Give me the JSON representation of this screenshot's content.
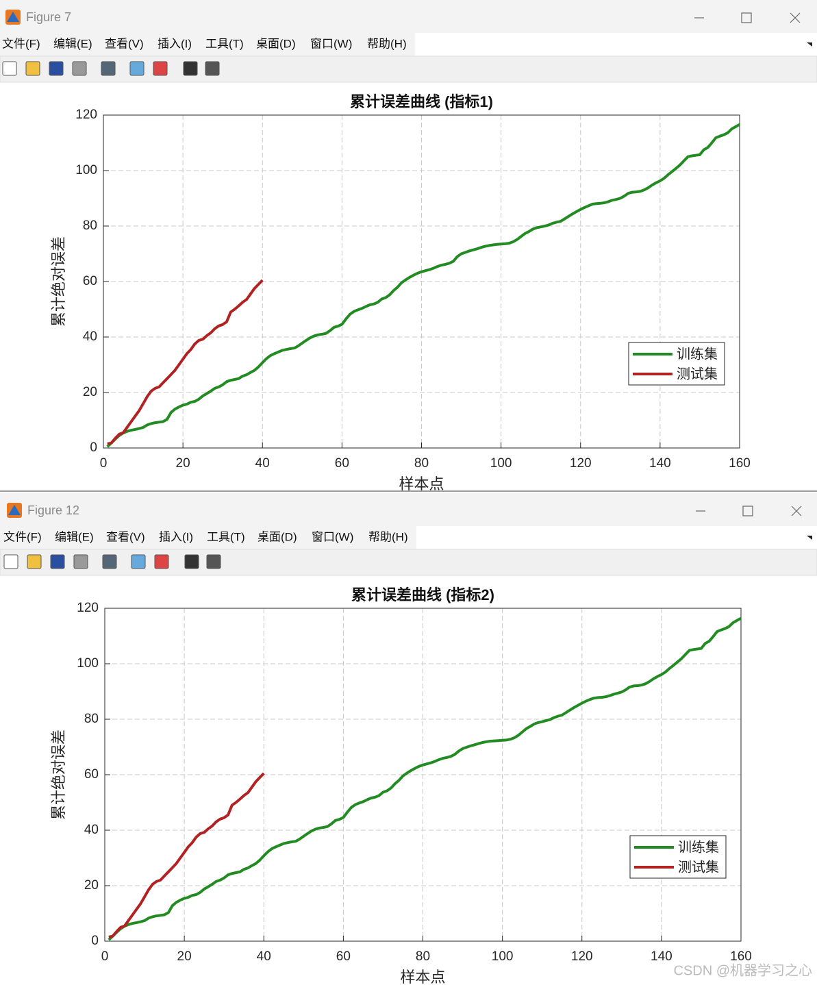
{
  "windows": [
    {
      "title": "Figure 7",
      "menu": [
        "文件(F)",
        "编辑(E)",
        "查看(V)",
        "插入(I)",
        "工具(T)",
        "桌面(D)",
        "窗口(W)",
        "帮助(H)"
      ]
    },
    {
      "title": "Figure 12",
      "menu": [
        "文件(F)",
        "编辑(E)",
        "查看(V)",
        "插入(I)",
        "工具(T)",
        "桌面(D)",
        "窗口(W)",
        "帮助(H)"
      ]
    }
  ],
  "chart_data": [
    {
      "type": "line",
      "title": "累计误差曲线 (指标1)",
      "x_label": "样本点",
      "y_label": "累计绝对误差",
      "xlim": [
        0,
        160
      ],
      "xticks": [
        0,
        20,
        40,
        60,
        80,
        100,
        120,
        140,
        160
      ],
      "ylim": [
        0,
        120
      ],
      "yticks": [
        0,
        20,
        40,
        60,
        80,
        100,
        120
      ],
      "grid": true,
      "legend": "southeast",
      "series": [
        {
          "name": "训练集",
          "color": "#228b22",
          "x": [
            1,
            2,
            3,
            4,
            5,
            6,
            7,
            8,
            9,
            10,
            11,
            12,
            13,
            14,
            15,
            16,
            17,
            18,
            19,
            20,
            21,
            22,
            23,
            24,
            25,
            26,
            27,
            28,
            29,
            30,
            31,
            32,
            33,
            34,
            35,
            36,
            37,
            38,
            39,
            40,
            41,
            42,
            43,
            44,
            45,
            46,
            47,
            48,
            49,
            50,
            51,
            52,
            53,
            54,
            55,
            56,
            57,
            58,
            59,
            60,
            61,
            62,
            63,
            64,
            65,
            66,
            67,
            68,
            69,
            70,
            71,
            72,
            73,
            74,
            75,
            76,
            77,
            78,
            79,
            80,
            81,
            82,
            83,
            84,
            85,
            86,
            87,
            88,
            89,
            90,
            91,
            92,
            93,
            94,
            95,
            96,
            97,
            98,
            99,
            100,
            101,
            102,
            103,
            104,
            105,
            106,
            107,
            108,
            109,
            110,
            111,
            112,
            113,
            114,
            115,
            116,
            117,
            118,
            119,
            120,
            121,
            122,
            123,
            124,
            125,
            126,
            127,
            128,
            129,
            130,
            131,
            132,
            133,
            134,
            135,
            136,
            137,
            138,
            139,
            140,
            141,
            142,
            143,
            144,
            145,
            146,
            147,
            148,
            149,
            150,
            151,
            152,
            153,
            154,
            155,
            156,
            157,
            158,
            159,
            160
          ],
          "values": [
            0.5,
            1.8,
            3.2,
            4.5,
            5.4,
            6,
            6.4,
            6.7,
            7,
            7.4,
            8.3,
            8.8,
            9.1,
            9.3,
            9.5,
            10.3,
            12.8,
            14,
            14.8,
            15.4,
            15.8,
            16.5,
            16.8,
            17.6,
            18.8,
            19.6,
            20.5,
            21.5,
            22,
            22.8,
            23.9,
            24.4,
            24.7,
            25,
            25.9,
            26.4,
            27.2,
            28,
            29.2,
            30.8,
            32.2,
            33.3,
            34,
            34.6,
            35.2,
            35.5,
            35.8,
            36,
            36.8,
            37.8,
            38.8,
            39.7,
            40.4,
            40.8,
            41,
            41.3,
            42.3,
            43.5,
            43.9,
            44.6,
            46.5,
            48.2,
            49.2,
            49.8,
            50.3,
            51,
            51.6,
            51.9,
            52.5,
            53.7,
            54.2,
            55.2,
            56.8,
            58,
            59.6,
            60.6,
            61.5,
            62.3,
            63,
            63.5,
            63.9,
            64.3,
            64.8,
            65.4,
            65.9,
            66.2,
            66.6,
            67.3,
            69,
            70,
            70.5,
            71,
            71.4,
            71.8,
            72.3,
            72.7,
            73,
            73.2,
            73.4,
            73.5,
            73.6,
            73.8,
            74.3,
            75.1,
            76.2,
            77.3,
            78,
            78.9,
            79.4,
            79.7,
            80,
            80.4,
            81,
            81.4,
            81.7,
            82.6,
            83.5,
            84.4,
            85.2,
            86,
            86.7,
            87.3,
            87.9,
            88.1,
            88.2,
            88.4,
            88.8,
            89.3,
            89.6,
            90,
            90.8,
            91.8,
            92.2,
            92.3,
            92.5,
            93,
            93.8,
            94.8,
            95.6,
            96.3,
            97.2,
            98.5,
            99.6,
            100.8,
            102,
            103.5,
            105,
            105.3,
            105.5,
            105.7,
            107.5,
            108.3,
            110,
            111.8,
            112.4,
            112.9,
            113.6,
            115,
            115.8,
            116.6
          ]
        },
        {
          "name": "测试集",
          "color": "#b22222",
          "x": [
            1,
            2,
            3,
            4,
            5,
            6,
            7,
            8,
            9,
            10,
            11,
            12,
            13,
            14,
            15,
            16,
            17,
            18,
            19,
            20,
            21,
            22,
            23,
            24,
            25,
            26,
            27,
            28,
            29,
            30,
            31,
            32,
            33,
            34,
            35,
            36,
            37,
            38,
            39,
            40
          ],
          "values": [
            1.5,
            1.8,
            3.5,
            5,
            5.5,
            7.5,
            9.5,
            11.5,
            13.5,
            16,
            18.5,
            20.5,
            21.5,
            22,
            23.5,
            25,
            26.5,
            28,
            30,
            32,
            34,
            35.5,
            37.5,
            38.8,
            39.2,
            40.5,
            41.5,
            43,
            44,
            44.5,
            45.5,
            49,
            50,
            51.2,
            52.5,
            53.5,
            55.5,
            57.5,
            59,
            60.5
          ]
        }
      ]
    },
    {
      "type": "line",
      "title": "累计误差曲线 (指标2)",
      "x_label": "样本点",
      "y_label": "累计绝对误差",
      "xlim": [
        0,
        160
      ],
      "xticks": [
        0,
        20,
        40,
        60,
        80,
        100,
        120,
        140,
        160
      ],
      "ylim": [
        0,
        120
      ],
      "yticks": [
        0,
        20,
        40,
        60,
        80,
        100,
        120
      ],
      "grid": true,
      "legend": "southeast",
      "series": [
        {
          "name": "训练集",
          "color": "#228b22",
          "x": [
            1,
            2,
            3,
            4,
            5,
            6,
            7,
            8,
            9,
            10,
            11,
            12,
            13,
            14,
            15,
            16,
            17,
            18,
            19,
            20,
            21,
            22,
            23,
            24,
            25,
            26,
            27,
            28,
            29,
            30,
            31,
            32,
            33,
            34,
            35,
            36,
            37,
            38,
            39,
            40,
            41,
            42,
            43,
            44,
            45,
            46,
            47,
            48,
            49,
            50,
            51,
            52,
            53,
            54,
            55,
            56,
            57,
            58,
            59,
            60,
            61,
            62,
            63,
            64,
            65,
            66,
            67,
            68,
            69,
            70,
            71,
            72,
            73,
            74,
            75,
            76,
            77,
            78,
            79,
            80,
            81,
            82,
            83,
            84,
            85,
            86,
            87,
            88,
            89,
            90,
            91,
            92,
            93,
            94,
            95,
            96,
            97,
            98,
            99,
            100,
            101,
            102,
            103,
            104,
            105,
            106,
            107,
            108,
            109,
            110,
            111,
            112,
            113,
            114,
            115,
            116,
            117,
            118,
            119,
            120,
            121,
            122,
            123,
            124,
            125,
            126,
            127,
            128,
            129,
            130,
            131,
            132,
            133,
            134,
            135,
            136,
            137,
            138,
            139,
            140,
            141,
            142,
            143,
            144,
            145,
            146,
            147,
            148,
            149,
            150,
            151,
            152,
            153,
            154,
            155,
            156,
            157,
            158,
            159,
            160
          ],
          "values": [
            0.5,
            1.8,
            3.2,
            4.5,
            5.4,
            6,
            6.4,
            6.7,
            7,
            7.4,
            8.3,
            8.8,
            9.1,
            9.3,
            9.5,
            10.3,
            12.8,
            14,
            14.8,
            15.4,
            15.8,
            16.5,
            16.8,
            17.6,
            18.8,
            19.6,
            20.5,
            21.5,
            22,
            22.8,
            23.9,
            24.4,
            24.7,
            25,
            25.9,
            26.4,
            27.2,
            28,
            29.2,
            30.8,
            32.2,
            33.3,
            34,
            34.6,
            35.2,
            35.5,
            35.8,
            36,
            36.8,
            37.8,
            38.8,
            39.7,
            40.4,
            40.8,
            41,
            41.3,
            42.3,
            43.5,
            43.9,
            44.6,
            46.5,
            48.2,
            49.2,
            49.8,
            50.3,
            51,
            51.6,
            51.9,
            52.5,
            53.7,
            54.2,
            55.2,
            56.8,
            58,
            59.6,
            60.6,
            61.5,
            62.3,
            63,
            63.5,
            63.9,
            64.3,
            64.8,
            65.4,
            65.9,
            66.2,
            66.6,
            67.3,
            68.5,
            69.4,
            69.9,
            70.4,
            70.8,
            71.2,
            71.6,
            71.9,
            72.1,
            72.2,
            72.3,
            72.4,
            72.5,
            72.8,
            73.3,
            74.2,
            75.4,
            76.6,
            77.4,
            78.3,
            78.8,
            79.1,
            79.5,
            79.9,
            80.6,
            81.1,
            81.5,
            82.4,
            83.3,
            84.2,
            85,
            85.8,
            86.5,
            87.1,
            87.6,
            87.8,
            87.9,
            88.1,
            88.5,
            89,
            89.4,
            89.8,
            90.6,
            91.6,
            92,
            92.1,
            92.3,
            92.8,
            93.6,
            94.6,
            95.4,
            96.1,
            97,
            98.3,
            99.4,
            100.6,
            101.8,
            103.3,
            104.8,
            105.1,
            105.3,
            105.5,
            107.3,
            108.1,
            109.8,
            111.6,
            112.2,
            112.7,
            113.4,
            114.8,
            115.6,
            116.4
          ]
        },
        {
          "name": "测试集",
          "color": "#b22222",
          "x": [
            1,
            2,
            3,
            4,
            5,
            6,
            7,
            8,
            9,
            10,
            11,
            12,
            13,
            14,
            15,
            16,
            17,
            18,
            19,
            20,
            21,
            22,
            23,
            24,
            25,
            26,
            27,
            28,
            29,
            30,
            31,
            32,
            33,
            34,
            35,
            36,
            37,
            38,
            39,
            40
          ],
          "values": [
            1.5,
            1.8,
            3.5,
            5,
            5.5,
            7.5,
            9.5,
            11.5,
            13.5,
            16,
            18.5,
            20.5,
            21.5,
            22,
            23.5,
            25,
            26.5,
            28,
            30,
            32,
            34,
            35.5,
            37.5,
            38.8,
            39.2,
            40.5,
            41.5,
            43,
            44,
            44.5,
            45.5,
            49,
            50,
            51.2,
            52.5,
            53.5,
            55.5,
            57.5,
            59,
            60.5
          ]
        }
      ]
    }
  ],
  "watermark": "CSDN @机器学习之心"
}
